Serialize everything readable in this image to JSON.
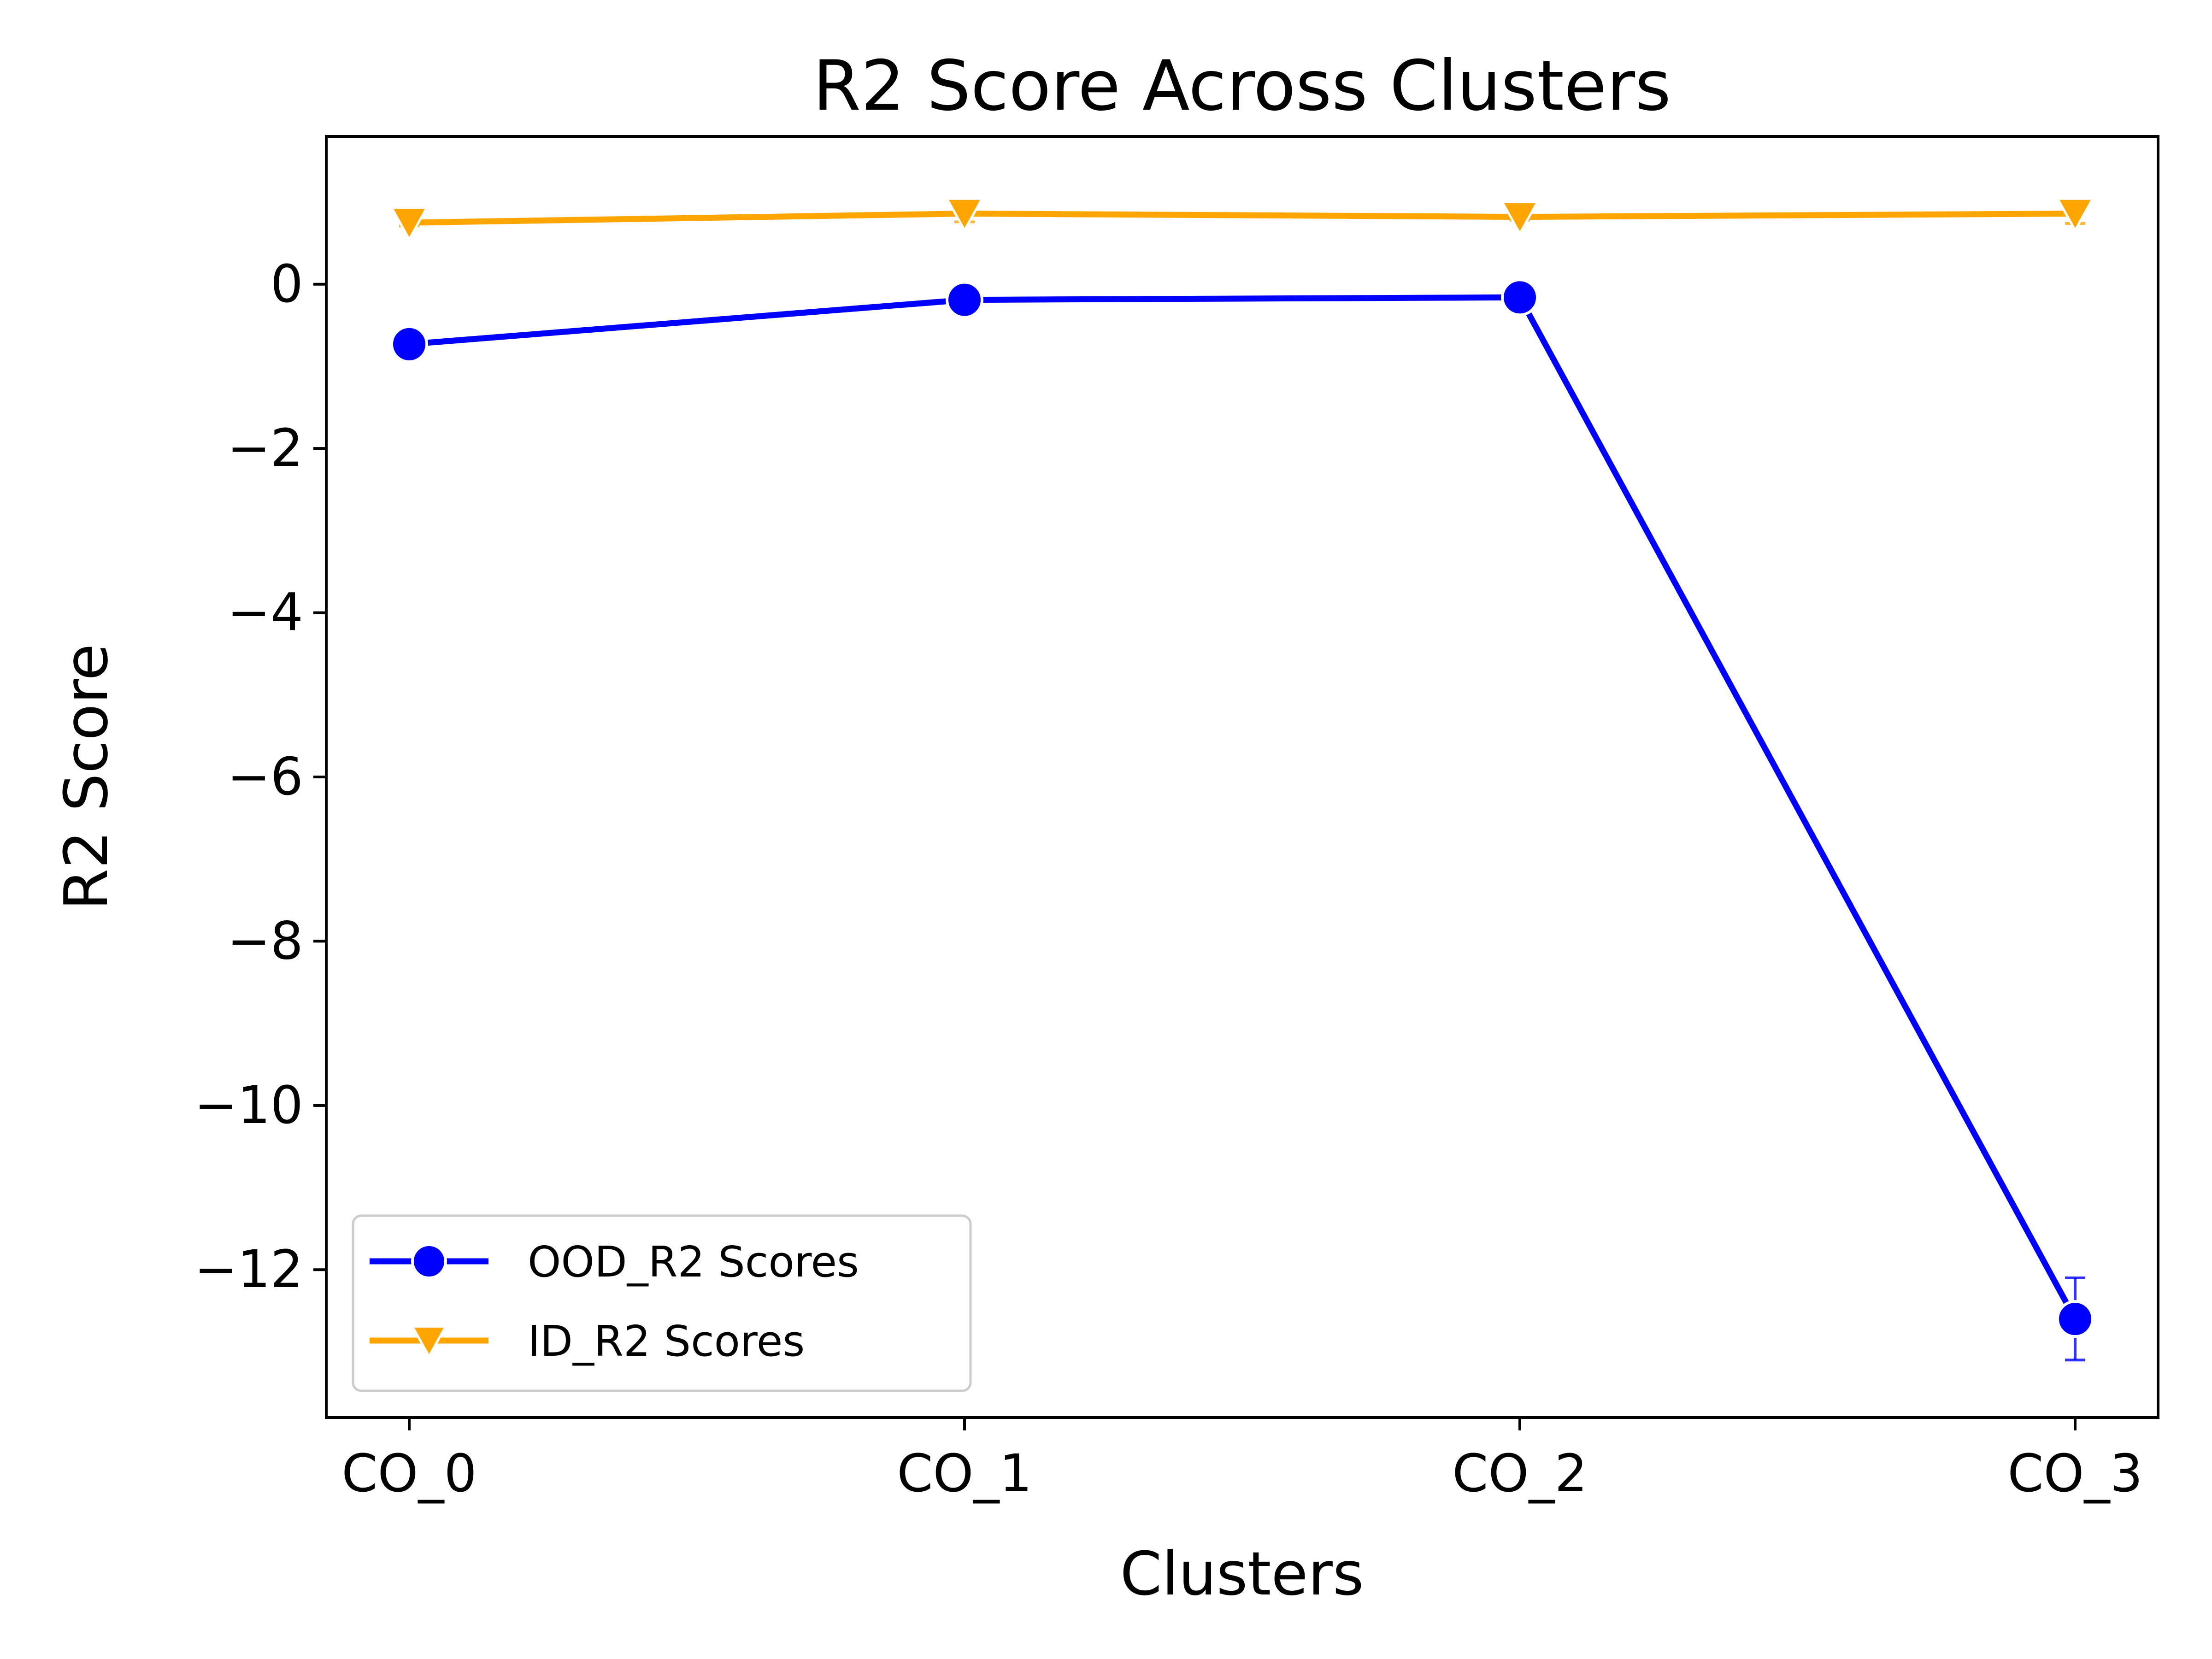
{
  "chart_data": {
    "type": "line",
    "title": "R2 Score Across Clusters",
    "xlabel": "Clusters",
    "ylabel": "R2 Score",
    "categories": [
      "CO_0",
      "CO_1",
      "CO_2",
      "CO_3"
    ],
    "ylim": [
      -13.8,
      1.8
    ],
    "yticks": [
      0,
      -2,
      -4,
      -6,
      -8,
      -10,
      -12
    ],
    "ytick_labels": [
      "0",
      "−2",
      "−4",
      "−6",
      "−8",
      "−10",
      "−12"
    ],
    "grid": false,
    "legend_position": "lower-left",
    "series": [
      {
        "name": "OOD_R2 Scores",
        "color": "#0000ff",
        "marker": "circle",
        "values": [
          -0.73,
          -0.19,
          -0.16,
          -12.6
        ],
        "error": [
          0.0,
          0.0,
          0.0,
          0.5
        ]
      },
      {
        "name": "ID_R2 Scores",
        "color": "#ffa500",
        "marker": "triangle-down",
        "values": [
          0.75,
          0.86,
          0.82,
          0.86
        ],
        "error": [
          0.04,
          0.1,
          0.04,
          0.12
        ]
      }
    ]
  }
}
